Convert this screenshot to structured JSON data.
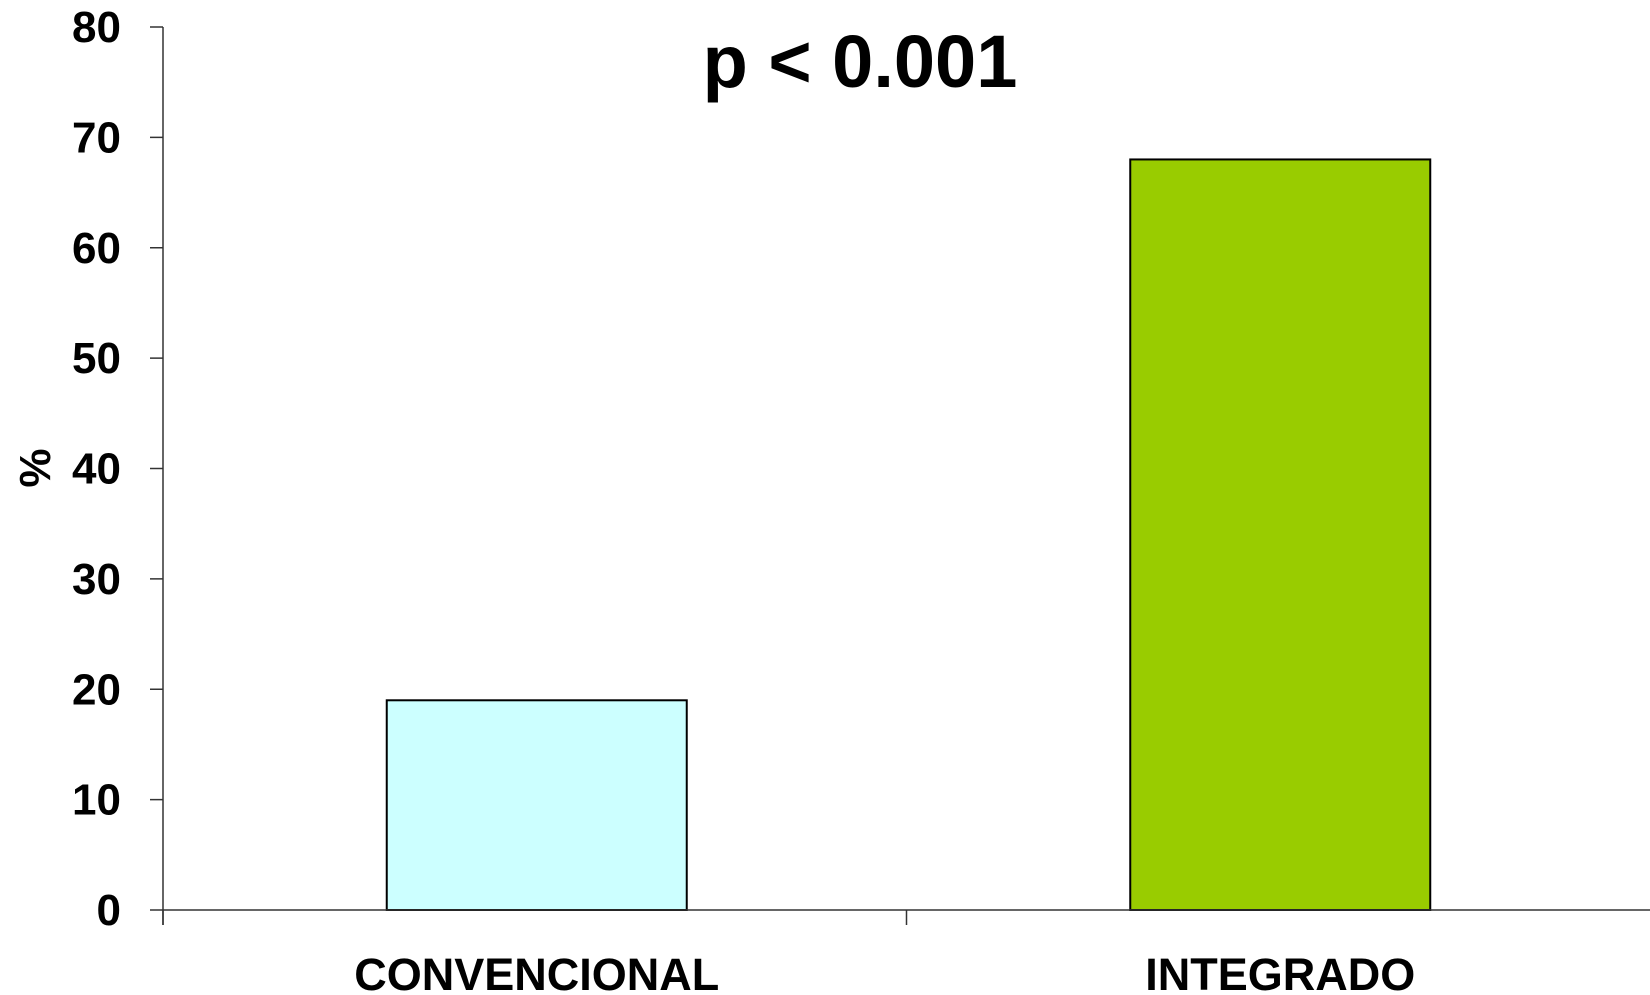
{
  "chart_data": {
    "type": "bar",
    "categories": [
      "CONVENCIONAL",
      "INTEGRADO"
    ],
    "values": [
      19,
      68
    ],
    "ylabel": "%",
    "xlabel": "",
    "ylim": [
      0,
      80
    ],
    "yticks": [
      "0",
      "10",
      "20",
      "30",
      "40",
      "50",
      "60",
      "70",
      "80"
    ],
    "annotation": "p < 0.001",
    "grid": false,
    "bar_colors": [
      "#ccffff",
      "#99cc00"
    ],
    "bar_edge_color": "#000000"
  }
}
